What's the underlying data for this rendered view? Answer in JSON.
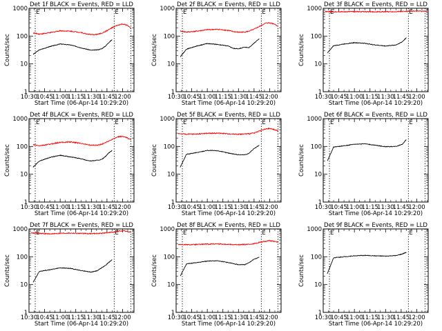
{
  "common": {
    "title_suffix": " BLACK = Events, RED = LLD",
    "xlabel": "Start Time (06-Apr-14 10:29:20)",
    "ylabel": "Counts/sec",
    "x_ticks": [
      "10:30",
      "10:45",
      "11:00",
      "11:15",
      "11:30",
      "11:45",
      "12:00"
    ],
    "x_tick_values_min": [
      0,
      15,
      30,
      45,
      60,
      75,
      90
    ],
    "y_ticks": [
      "1",
      "10",
      "100",
      "1000"
    ],
    "y_tick_values": [
      1,
      10,
      100,
      1000
    ],
    "xlim_min": [
      0,
      101
    ],
    "ylim": [
      1,
      1000
    ],
    "y_scale": "log",
    "event_markers": [
      "E",
      "E"
    ],
    "colors": {
      "events": "#000000",
      "lld": "#ff0000",
      "markers": "#000000"
    }
  },
  "chart_data": [
    {
      "type": "line",
      "title": "Det 1f BLACK = Events, RED = LLD",
      "x_unit": "minutes after 10:30",
      "markers_x": [
        6,
        82,
        98
      ],
      "series": [
        {
          "name": "Events",
          "color": "#000000",
          "x": [
            4,
            10,
            20,
            30,
            40,
            50,
            55,
            60,
            66,
            70,
            74,
            76,
            80
          ],
          "y": [
            22,
            32,
            42,
            52,
            48,
            38,
            34,
            31,
            32,
            35,
            45,
            55,
            75
          ]
        },
        {
          "name": "LLD",
          "color": "#ff0000",
          "x": [
            4,
            10,
            20,
            30,
            40,
            50,
            55,
            60,
            66,
            70,
            74,
            80,
            86,
            90,
            95,
            98
          ],
          "y": [
            130,
            118,
            132,
            155,
            150,
            135,
            120,
            112,
            115,
            128,
            150,
            200,
            250,
            270,
            240,
            190
          ]
        }
      ]
    },
    {
      "type": "line",
      "title": "Det 2f BLACK = Events, RED = LLD",
      "x_unit": "minutes after 10:30",
      "markers_x": [
        6,
        82,
        98
      ],
      "series": [
        {
          "name": "Events",
          "color": "#000000",
          "x": [
            4,
            10,
            20,
            30,
            40,
            50,
            55,
            60,
            66,
            70,
            74,
            76,
            80
          ],
          "y": [
            18,
            34,
            44,
            54,
            50,
            44,
            36,
            35,
            40,
            38,
            52,
            60,
            80
          ]
        },
        {
          "name": "LLD",
          "color": "#ff0000",
          "x": [
            4,
            10,
            20,
            30,
            40,
            50,
            55,
            60,
            66,
            70,
            74,
            80,
            86,
            90,
            95,
            98
          ],
          "y": [
            150,
            140,
            150,
            170,
            175,
            160,
            145,
            138,
            140,
            150,
            170,
            220,
            290,
            300,
            270,
            220
          ]
        }
      ]
    },
    {
      "type": "line",
      "title": "Det 3f BLACK = Events, RED = LLD",
      "x_unit": "minutes after 10:30",
      "markers_x": [
        6,
        82,
        98
      ],
      "series": [
        {
          "name": "Events",
          "color": "#000000",
          "x": [
            4,
            10,
            20,
            30,
            40,
            50,
            60,
            70,
            76,
            80
          ],
          "y": [
            25,
            45,
            52,
            58,
            55,
            48,
            44,
            48,
            62,
            88
          ]
        },
        {
          "name": "LLD",
          "color": "#ff0000",
          "x": [
            2,
            10,
            20,
            30,
            40,
            50,
            60,
            70,
            80,
            90,
            100
          ],
          "y": [
            760,
            740,
            750,
            760,
            755,
            745,
            750,
            760,
            780,
            790,
            780
          ]
        }
      ]
    },
    {
      "type": "line",
      "title": "Det 4f BLACK = Events, RED = LLD",
      "x_unit": "minutes after 10:30",
      "markers_x": [
        6,
        82,
        98
      ],
      "series": [
        {
          "name": "Events",
          "color": "#000000",
          "x": [
            4,
            10,
            20,
            30,
            40,
            50,
            55,
            60,
            66,
            70,
            74,
            76,
            80
          ],
          "y": [
            18,
            30,
            40,
            48,
            42,
            36,
            32,
            30,
            32,
            34,
            45,
            55,
            72
          ]
        },
        {
          "name": "LLD",
          "color": "#ff0000",
          "x": [
            4,
            10,
            20,
            30,
            40,
            50,
            55,
            60,
            66,
            70,
            74,
            80,
            86,
            90,
            95,
            98
          ],
          "y": [
            115,
            105,
            120,
            140,
            145,
            130,
            118,
            110,
            112,
            120,
            140,
            180,
            220,
            230,
            200,
            170
          ]
        }
      ]
    },
    {
      "type": "line",
      "title": "Det 5f BLACK = Events, RED = LLD",
      "x_unit": "minutes after 10:30",
      "markers_x": [
        6,
        82,
        98
      ],
      "series": [
        {
          "name": "Events",
          "color": "#000000",
          "x": [
            4,
            10,
            20,
            30,
            40,
            50,
            60,
            66,
            70,
            74,
            80
          ],
          "y": [
            18,
            52,
            60,
            72,
            70,
            58,
            50,
            50,
            56,
            78,
            110
          ]
        },
        {
          "name": "LLD",
          "color": "#ff0000",
          "x": [
            2,
            10,
            20,
            30,
            40,
            50,
            60,
            70,
            76,
            80,
            86,
            90,
            95,
            98
          ],
          "y": [
            290,
            275,
            280,
            295,
            300,
            285,
            275,
            285,
            310,
            360,
            420,
            440,
            400,
            360
          ]
        }
      ]
    },
    {
      "type": "line",
      "title": "Det 6f BLACK = Events, RED = LLD",
      "x_unit": "minutes after 10:30",
      "markers_x": [
        6,
        82,
        98
      ],
      "series": [
        {
          "name": "Events",
          "color": "#000000",
          "x": [
            4,
            10,
            20,
            30,
            40,
            50,
            60,
            70,
            76,
            80
          ],
          "y": [
            30,
            95,
            105,
            120,
            125,
            110,
            98,
            100,
            120,
            175
          ]
        }
      ]
    },
    {
      "type": "line",
      "title": "Det 7f BLACK = Events, RED = LLD",
      "x_unit": "minutes after 10:30",
      "markers_x": [
        6,
        82,
        98
      ],
      "series": [
        {
          "name": "Events",
          "color": "#000000",
          "x": [
            4,
            10,
            20,
            30,
            40,
            50,
            55,
            60,
            66,
            70,
            74,
            76,
            80
          ],
          "y": [
            12,
            30,
            34,
            40,
            38,
            32,
            30,
            28,
            32,
            40,
            50,
            60,
            78
          ]
        },
        {
          "name": "LLD",
          "color": "#ff0000",
          "x": [
            2,
            10,
            20,
            30,
            40,
            50,
            60,
            70,
            80,
            86,
            90,
            95,
            98
          ],
          "y": [
            720,
            700,
            660,
            700,
            710,
            690,
            680,
            700,
            760,
            820,
            860,
            800,
            760
          ]
        }
      ]
    },
    {
      "type": "line",
      "title": "Det 8f BLACK = Events, RED = LLD",
      "x_unit": "minutes after 10:30",
      "markers_x": [
        6,
        82,
        98
      ],
      "series": [
        {
          "name": "Events",
          "color": "#000000",
          "x": [
            4,
            10,
            20,
            30,
            40,
            50,
            60,
            66,
            70,
            74,
            80
          ],
          "y": [
            20,
            55,
            62,
            70,
            72,
            62,
            52,
            52,
            60,
            78,
            95
          ]
        },
        {
          "name": "LLD",
          "color": "#ff0000",
          "x": [
            2,
            10,
            20,
            30,
            40,
            50,
            60,
            70,
            76,
            80,
            86,
            90,
            95,
            98
          ],
          "y": [
            280,
            270,
            275,
            285,
            290,
            280,
            270,
            280,
            300,
            330,
            360,
            380,
            360,
            330
          ]
        }
      ]
    },
    {
      "type": "line",
      "title": "Det 9f BLACK = Events, RED = LLD",
      "x_unit": "minutes after 10:30",
      "markers_x": [
        6,
        82,
        98
      ],
      "series": [
        {
          "name": "Events",
          "color": "#000000",
          "x": [
            4,
            10,
            20,
            30,
            40,
            50,
            60,
            70,
            76,
            80
          ],
          "y": [
            25,
            92,
            100,
            108,
            112,
            108,
            105,
            110,
            125,
            145
          ]
        }
      ]
    }
  ]
}
